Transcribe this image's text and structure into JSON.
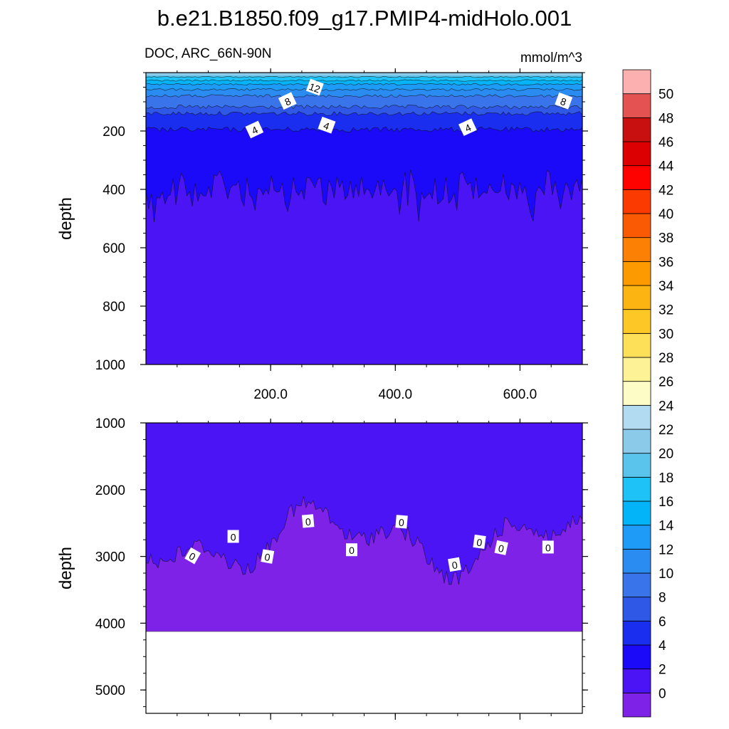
{
  "chart_data": {
    "type": "contour",
    "title": "b.e21.B1850.f09_g17.PMIP4-midHolo.001",
    "variable_label": "DOC, ARC_66N-90N",
    "units_label": "mmol/m^3",
    "colorbar": {
      "levels": [
        "0",
        "2",
        "4",
        "6",
        "8",
        "10",
        "12",
        "14",
        "16",
        "18",
        "20",
        "22",
        "24",
        "26",
        "28",
        "30",
        "32",
        "34",
        "36",
        "38",
        "40",
        "42",
        "44",
        "46",
        "48",
        "50"
      ],
      "colors": [
        "#7f22e8",
        "#4b14f5",
        "#1a0af8",
        "#1a2ef0",
        "#2f58e6",
        "#3a74ea",
        "#2a8cf0",
        "#1e9bf6",
        "#04b4f8",
        "#1ec2f6",
        "#5ac4ec",
        "#8ccaea",
        "#b2daf0",
        "#fdfbc6",
        "#fdf296",
        "#fde058",
        "#fdc826",
        "#fcb412",
        "#fc9a02",
        "#fc8004",
        "#fa5a04",
        "#fb3a02",
        "#fe0200",
        "#dc0002",
        "#c81010",
        "#e45252",
        "#fcb0b0"
      ]
    },
    "panels": [
      {
        "name": "upper",
        "ylabel": "depth",
        "ylim": [
          0,
          1000
        ],
        "yticks": [
          "200",
          "400",
          "600",
          "800",
          "1000"
        ],
        "xlim": [
          0,
          700
        ],
        "xticks": [
          "200.0",
          "400.0",
          "600.0"
        ],
        "contour_labels": [
          {
            "text": "12",
            "x": 271,
            "y": 50
          },
          {
            "text": "8",
            "x": 227,
            "y": 97
          },
          {
            "text": "8",
            "x": 670,
            "y": 97
          },
          {
            "text": "4",
            "x": 174,
            "y": 195
          },
          {
            "text": "4",
            "x": 290,
            "y": 180
          },
          {
            "text": "4",
            "x": 516,
            "y": 187
          }
        ]
      },
      {
        "name": "lower",
        "ylabel": "depth",
        "ylim": [
          1000,
          5350
        ],
        "yticks": [
          "1000",
          "2000",
          "3000",
          "4000",
          "5000"
        ],
        "xlim": [
          0,
          700
        ],
        "bottom_depth": 4125,
        "contour_labels": [
          {
            "text": "0",
            "x": 75,
            "y": 2990
          },
          {
            "text": "0",
            "x": 140,
            "y": 2700
          },
          {
            "text": "0",
            "x": 195,
            "y": 3000
          },
          {
            "text": "0",
            "x": 260,
            "y": 2470
          },
          {
            "text": "0",
            "x": 330,
            "y": 2900
          },
          {
            "text": "0",
            "x": 410,
            "y": 2480
          },
          {
            "text": "0",
            "x": 495,
            "y": 3120
          },
          {
            "text": "0",
            "x": 535,
            "y": 2780
          },
          {
            "text": "0",
            "x": 570,
            "y": 2870
          },
          {
            "text": "0",
            "x": 645,
            "y": 2860
          }
        ]
      }
    ]
  }
}
